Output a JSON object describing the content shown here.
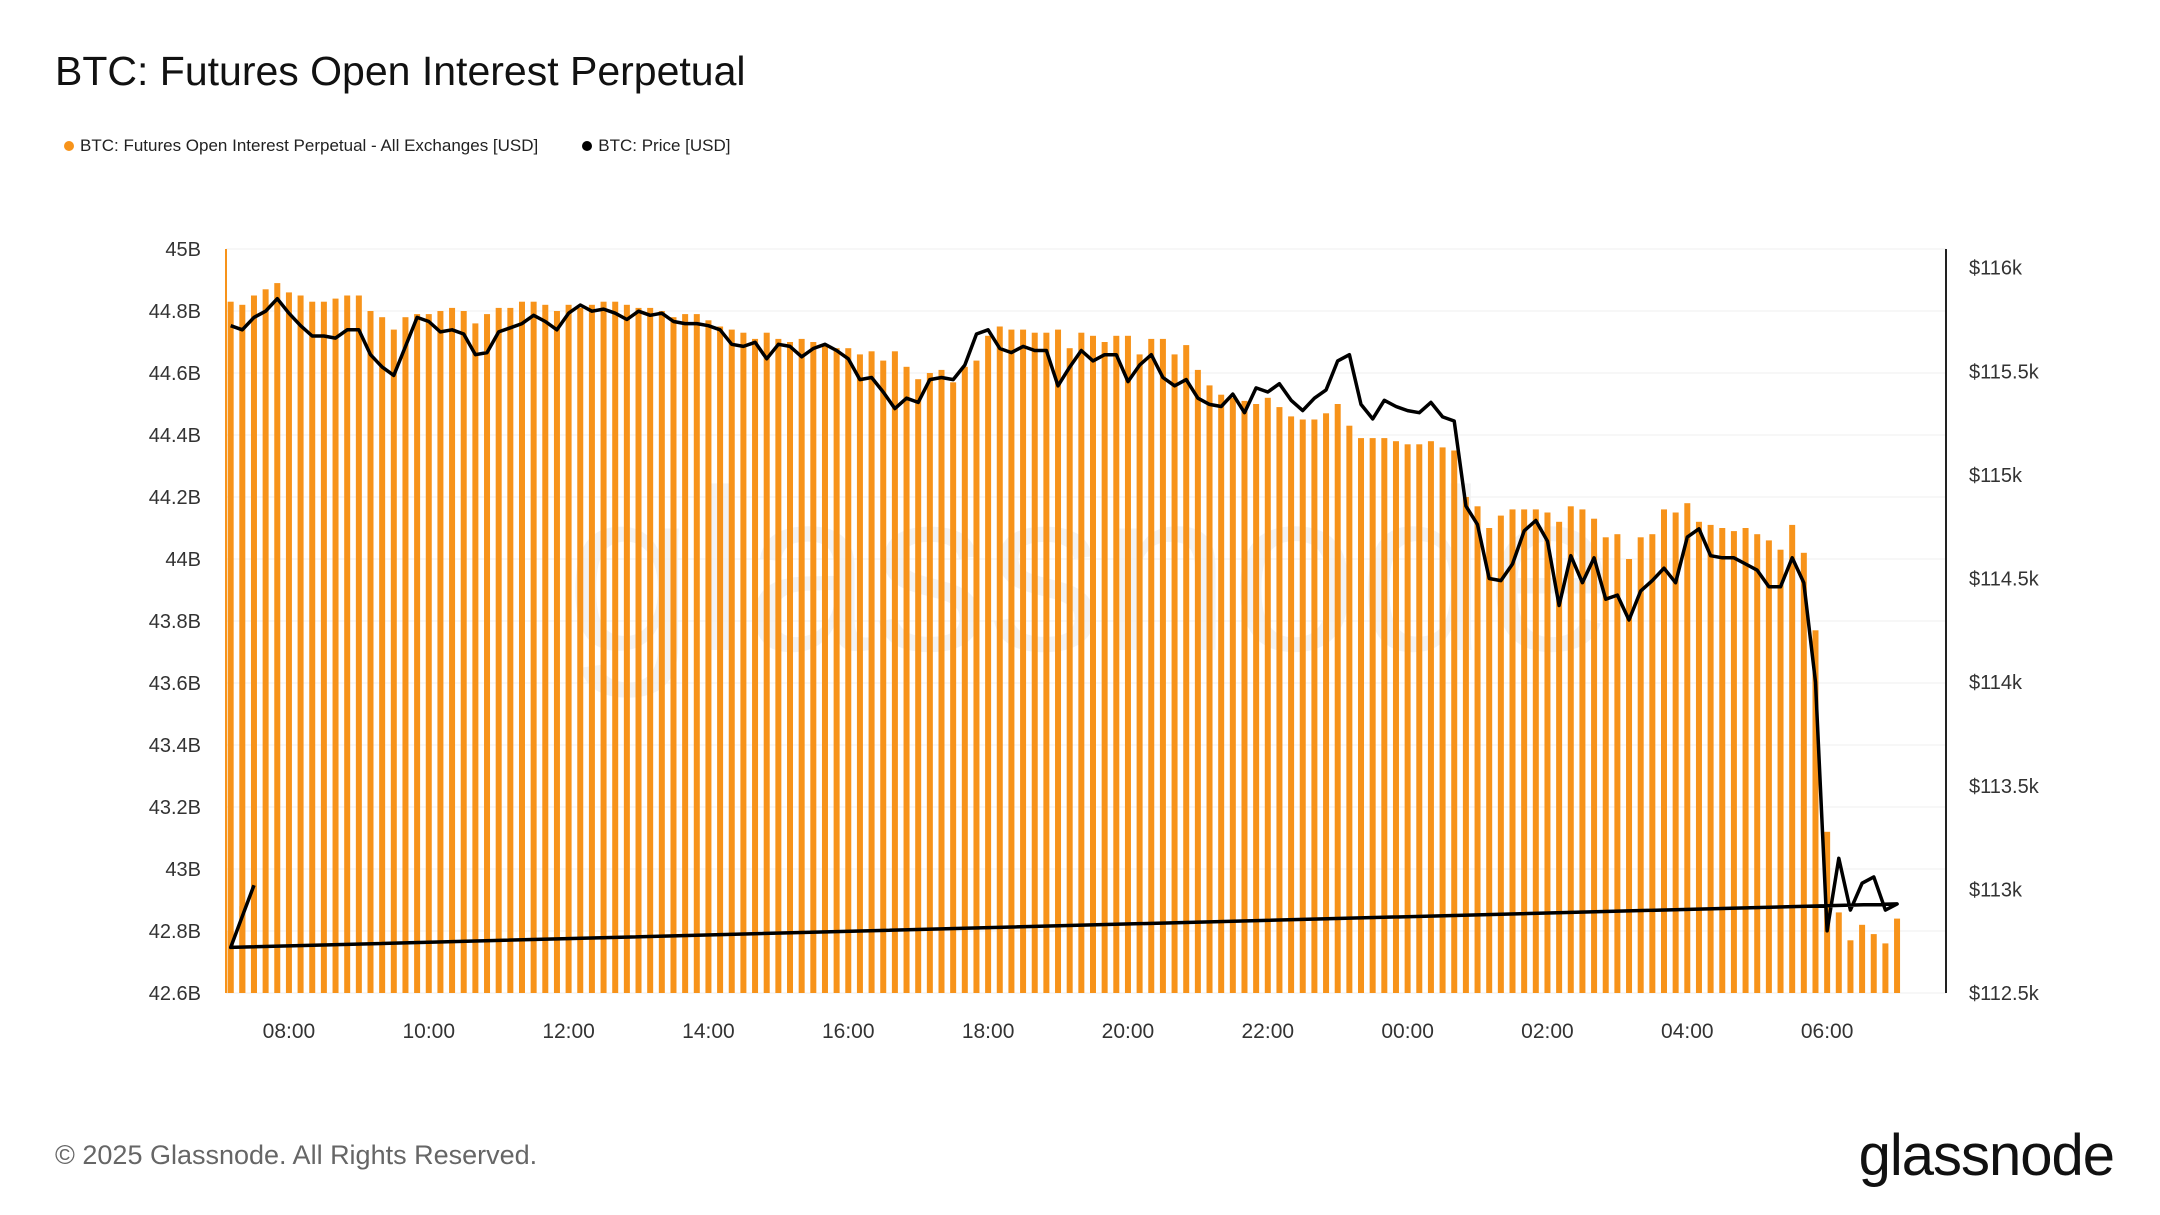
{
  "title": "BTC: Futures Open Interest Perpetual",
  "legend": [
    {
      "label": "BTC: Futures Open Interest Perpetual - All Exchanges [USD]",
      "color": "#F7931A"
    },
    {
      "label": "BTC: Price [USD]",
      "color": "#000000"
    }
  ],
  "footer": "© 2025 Glassnode. All Rights Reserved.",
  "logo": "glassnode",
  "watermark": "glassnode",
  "chart_data": {
    "type": "bar+line",
    "title": "BTC: Futures Open Interest Perpetual",
    "grid": true,
    "legend_placement": "top-left",
    "x_ticks": [
      "08:00",
      "10:00",
      "12:00",
      "14:00",
      "16:00",
      "18:00",
      "20:00",
      "22:00",
      "00:00",
      "02:00",
      "04:00",
      "06:00"
    ],
    "xlim": [
      "07:06",
      "07:42"
    ],
    "y_left": {
      "ticks": [
        "45B",
        "44.8B",
        "44.6B",
        "44.4B",
        "44.2B",
        "44B",
        "43.8B",
        "43.6B",
        "43.4B",
        "43.2B",
        "43B",
        "42.8B",
        "42.6B"
      ],
      "ylim": [
        42.6,
        45.0
      ],
      "unit": "B USD"
    },
    "y_right": {
      "ticks": [
        "$116k",
        "$115.5k",
        "$115k",
        "$114.5k",
        "$114k",
        "$113.5k",
        "$113k",
        "$112.5k"
      ],
      "ylim": [
        112.5,
        116.09
      ],
      "unit": "k USD"
    },
    "times": [
      "07:10",
      "07:20",
      "07:30",
      "07:40",
      "07:50",
      "08:00",
      "08:10",
      "08:20",
      "08:30",
      "08:40",
      "08:50",
      "09:00",
      "09:10",
      "09:20",
      "09:30",
      "09:40",
      "09:50",
      "10:00",
      "10:10",
      "10:20",
      "10:30",
      "10:40",
      "10:50",
      "11:00",
      "11:10",
      "11:20",
      "11:30",
      "11:40",
      "11:50",
      "12:00",
      "12:10",
      "12:20",
      "12:30",
      "12:40",
      "12:50",
      "13:00",
      "13:10",
      "13:20",
      "13:30",
      "13:40",
      "13:50",
      "14:00",
      "14:10",
      "14:20",
      "14:30",
      "14:40",
      "14:50",
      "15:00",
      "15:10",
      "15:20",
      "15:30",
      "15:40",
      "15:50",
      "16:00",
      "16:10",
      "16:20",
      "16:30",
      "16:40",
      "16:50",
      "17:00",
      "17:10",
      "17:20",
      "17:30",
      "17:40",
      "17:50",
      "18:00",
      "18:10",
      "18:20",
      "18:30",
      "18:40",
      "18:50",
      "19:00",
      "19:10",
      "19:20",
      "19:30",
      "19:40",
      "19:50",
      "20:00",
      "20:10",
      "20:20",
      "20:30",
      "20:40",
      "20:50",
      "21:00",
      "21:10",
      "21:20",
      "21:30",
      "21:40",
      "21:50",
      "22:00",
      "22:10",
      "22:20",
      "22:30",
      "22:40",
      "22:50",
      "23:00",
      "23:10",
      "23:20",
      "23:30",
      "23:40",
      "23:50",
      "00:00",
      "00:10",
      "00:20",
      "00:30",
      "00:40",
      "00:50",
      "01:00",
      "01:10",
      "01:20",
      "01:30",
      "01:40",
      "01:50",
      "02:00",
      "02:10",
      "02:20",
      "02:30",
      "02:40",
      "02:50",
      "03:00",
      "03:10",
      "03:20",
      "03:30",
      "03:40",
      "03:50",
      "04:00",
      "04:10",
      "04:20",
      "04:30",
      "04:40",
      "04:50",
      "05:00",
      "05:10",
      "05:20",
      "05:30",
      "05:40",
      "05:50",
      "06:00",
      "06:10",
      "06:20",
      "06:30",
      "06:40",
      "06:50",
      "07:00",
      "07:10",
      "07:20",
      "07:30"
    ],
    "series": [
      {
        "name": "BTC: Futures Open Interest Perpetual - All Exchanges [USD]",
        "type": "bar",
        "axis": "left",
        "color": "#F7931A",
        "values": [
          44.83,
          44.82,
          44.85,
          44.87,
          44.89,
          44.86,
          44.85,
          44.83,
          44.83,
          44.84,
          44.85,
          44.85,
          44.8,
          44.78,
          44.74,
          44.78,
          44.79,
          44.79,
          44.8,
          44.81,
          44.8,
          44.76,
          44.79,
          44.81,
          44.81,
          44.83,
          44.83,
          44.82,
          44.8,
          44.82,
          44.81,
          44.82,
          44.83,
          44.83,
          44.82,
          44.81,
          44.81,
          44.8,
          44.78,
          44.79,
          44.79,
          44.77,
          44.75,
          44.74,
          44.73,
          44.71,
          44.73,
          44.71,
          44.7,
          44.71,
          44.7,
          44.69,
          44.68,
          44.68,
          44.66,
          44.67,
          44.64,
          44.67,
          44.62,
          44.58,
          44.6,
          44.61,
          44.57,
          44.62,
          44.64,
          44.72,
          44.75,
          44.74,
          44.74,
          44.73,
          44.73,
          44.74,
          44.68,
          44.73,
          44.72,
          44.7,
          44.72,
          44.72,
          44.66,
          44.71,
          44.71,
          44.66,
          44.69,
          44.61,
          44.56,
          44.53,
          44.52,
          44.51,
          44.5,
          44.52,
          44.49,
          44.46,
          44.45,
          44.45,
          44.47,
          44.5,
          44.43,
          44.39,
          44.39,
          44.39,
          44.38,
          44.37,
          44.37,
          44.38,
          44.36,
          44.35,
          44.2,
          44.17,
          44.1,
          44.14,
          44.16,
          44.16,
          44.16,
          44.15,
          44.12,
          44.17,
          44.16,
          44.13,
          44.07,
          44.08,
          44.0,
          44.07,
          44.08,
          44.16,
          44.15,
          44.18,
          44.12,
          44.11,
          44.1,
          44.09,
          44.1,
          44.08,
          44.06,
          44.03,
          44.11,
          44.02,
          43.77,
          43.12,
          42.86,
          42.77,
          42.82,
          42.79,
          42.76,
          42.84,
          42.8,
          42.88,
          42.92
        ]
      },
      {
        "name": "BTC: Price [USD]",
        "type": "line",
        "axis": "right",
        "color": "#000000",
        "values": [
          115.72,
          115.7,
          115.76,
          115.79,
          115.85,
          115.78,
          115.72,
          115.67,
          115.67,
          115.66,
          115.7,
          115.7,
          115.58,
          115.52,
          115.48,
          115.62,
          115.76,
          115.74,
          115.69,
          115.7,
          115.68,
          115.58,
          115.59,
          115.69,
          115.71,
          115.73,
          115.77,
          115.74,
          115.7,
          115.78,
          115.82,
          115.79,
          115.8,
          115.78,
          115.75,
          115.79,
          115.77,
          115.78,
          115.74,
          115.73,
          115.73,
          115.72,
          115.7,
          115.63,
          115.62,
          115.64,
          115.56,
          115.63,
          115.62,
          115.57,
          115.61,
          115.63,
          115.6,
          115.56,
          115.46,
          115.47,
          115.4,
          115.32,
          115.37,
          115.35,
          115.46,
          115.47,
          115.46,
          115.53,
          115.68,
          115.7,
          115.61,
          115.59,
          115.62,
          115.6,
          115.6,
          115.43,
          115.52,
          115.6,
          115.55,
          115.58,
          115.58,
          115.45,
          115.53,
          115.58,
          115.47,
          115.43,
          115.46,
          115.37,
          115.34,
          115.33,
          115.39,
          115.3,
          115.42,
          115.4,
          115.44,
          115.36,
          115.31,
          115.37,
          115.41,
          115.55,
          115.58,
          115.34,
          115.27,
          115.36,
          115.33,
          115.31,
          115.3,
          115.35,
          115.28,
          115.26,
          114.85,
          114.76,
          114.5,
          114.49,
          114.57,
          114.73,
          114.78,
          114.68,
          114.37,
          114.61,
          114.48,
          114.6,
          114.4,
          114.42,
          114.3,
          114.44,
          114.49,
          114.55,
          114.48,
          114.7,
          114.74,
          114.61,
          114.6,
          114.6,
          114.57,
          114.54,
          114.46,
          114.46,
          114.6,
          114.48,
          114.0,
          112.8,
          113.15,
          112.9,
          113.03,
          113.06,
          112.9,
          112.93,
          112.72,
          112.87,
          113.02
        ]
      }
    ]
  }
}
